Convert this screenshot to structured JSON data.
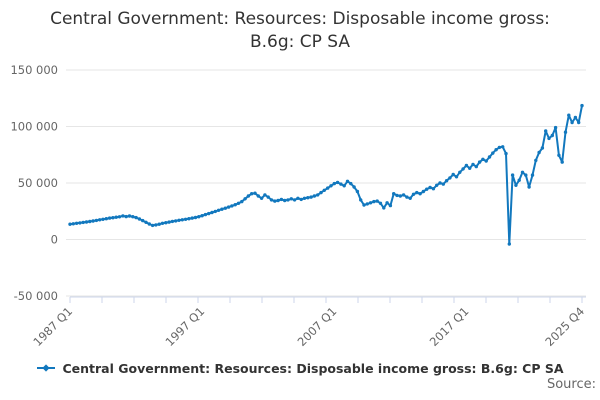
{
  "title": "Central Government: Resources: Disposable income gross: B.6g: CP SA",
  "source_label": "Source:",
  "legend": {
    "series_label": "Central Government: Resources: Disposable income gross: B.6g: CP SA"
  },
  "colors": {
    "line": "#1278be",
    "grid": "#e6e6e6",
    "axis": "#ccd6eb",
    "tick_label": "#666666",
    "title_text": "#333333",
    "legend_text": "#333333",
    "source_text": "#666666",
    "background": "#ffffff"
  },
  "chart_data": {
    "type": "line",
    "title": "Central Government: Resources: Disposable income gross: B.6g: CP SA",
    "xlabel": "",
    "ylabel": "",
    "frequency": "quarterly",
    "x_start": "1987 Q1",
    "x_end": "2025 Q4",
    "x_tick_labels": [
      "1987 Q1",
      "1997 Q1",
      "2007 Q1",
      "2017 Q1",
      "2025 Q4"
    ],
    "x_tick_quarter_index": [
      0,
      40,
      80,
      120,
      155
    ],
    "y_tick_labels": [
      "150 000",
      "100 000",
      "50 000",
      "0",
      "-50 000"
    ],
    "y_tick_values": [
      150000,
      100000,
      50000,
      0,
      -50000
    ],
    "ylim": [
      -50000,
      150000
    ],
    "grid": "horizontal",
    "legend_position": "bottom",
    "markers": true,
    "series": [
      {
        "name": "Central Government: Resources: Disposable income gross: B.6g: CP SA",
        "values": [
          13500,
          13900,
          14300,
          14700,
          15100,
          15500,
          15900,
          16400,
          16900,
          17400,
          17900,
          18400,
          18900,
          19300,
          19700,
          20100,
          20900,
          20300,
          20800,
          20200,
          19400,
          18100,
          16700,
          15200,
          13700,
          12500,
          12900,
          13500,
          14300,
          14900,
          15400,
          16000,
          16500,
          17000,
          17400,
          17900,
          18400,
          18900,
          19500,
          20200,
          21100,
          22000,
          22900,
          23900,
          24900,
          25800,
          26800,
          27700,
          28700,
          29700,
          30800,
          32000,
          33500,
          36000,
          38500,
          40500,
          41000,
          38500,
          36500,
          39500,
          37500,
          35000,
          34000,
          34500,
          35500,
          34500,
          35000,
          36000,
          35000,
          36500,
          35500,
          36500,
          37000,
          37500,
          38500,
          39500,
          41500,
          43500,
          45500,
          47500,
          49500,
          50500,
          49000,
          47500,
          51500,
          49500,
          46500,
          42500,
          35000,
          30500,
          31500,
          32500,
          33500,
          34000,
          32000,
          28000,
          32500,
          30000,
          40500,
          39000,
          38500,
          39500,
          37500,
          36500,
          40000,
          41500,
          40500,
          42500,
          44500,
          46000,
          45000,
          48000,
          50000,
          49000,
          52000,
          54500,
          57500,
          55500,
          59500,
          62500,
          65500,
          63000,
          66500,
          64500,
          68500,
          71000,
          69500,
          73000,
          76500,
          79500,
          81500,
          82000,
          76000,
          -4000,
          57000,
          48000,
          52500,
          59500,
          57000,
          46500,
          57000,
          70000,
          77000,
          81000,
          96000,
          89500,
          92000,
          99000,
          74500,
          68500,
          95000,
          110000,
          103500,
          108000,
          103500,
          118500
        ]
      }
    ]
  }
}
